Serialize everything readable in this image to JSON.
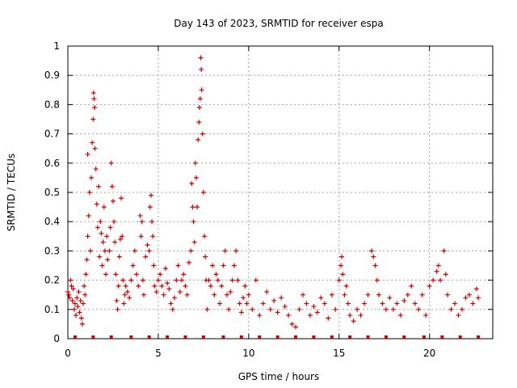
{
  "chart_data": {
    "type": "scatter",
    "title": "Day 143 of 2023, SRMTID for receiver espa",
    "xlabel": "GPS time / hours",
    "ylabel": "SRMTID / TECUs",
    "xlim": [
      0,
      23.5
    ],
    "ylim": [
      0,
      1
    ],
    "x_ticks": [
      0,
      5,
      10,
      15,
      20
    ],
    "y_ticks": [
      0,
      0.1,
      0.2,
      0.3,
      0.4,
      0.5,
      0.6,
      0.7,
      0.8,
      0.9,
      1
    ],
    "y_tick_labels": [
      "0",
      "0.1",
      "0.2",
      "0.3",
      "0.4",
      "0.5",
      "0.6",
      "0.7",
      "0.8",
      "0.9",
      "1"
    ],
    "grid": true,
    "marker": "+",
    "series_color": "#cc0000",
    "series": [
      {
        "name": "SRMTID",
        "points": [
          [
            0.0,
            0.16
          ],
          [
            0.05,
            0.15
          ],
          [
            0.1,
            0.14
          ],
          [
            0.15,
            0.2
          ],
          [
            0.2,
            0.18
          ],
          [
            0.25,
            0.13
          ],
          [
            0.3,
            0.17
          ],
          [
            0.35,
            0.1
          ],
          [
            0.4,
            0.12
          ],
          [
            0.45,
            0.08
          ],
          [
            0.5,
            0.14
          ],
          [
            0.55,
            0.11
          ],
          [
            0.6,
            0.16
          ],
          [
            0.65,
            0.09
          ],
          [
            0.7,
            0.13
          ],
          [
            0.75,
            0.07
          ],
          [
            0.8,
            0.05
          ],
          [
            0.85,
            0.12
          ],
          [
            0.9,
            0.18
          ],
          [
            0.95,
            0.15
          ],
          [
            1.0,
            0.22
          ],
          [
            1.05,
            0.27
          ],
          [
            1.1,
            0.35
          ],
          [
            1.1,
            0.63
          ],
          [
            1.15,
            0.42
          ],
          [
            1.2,
            0.5
          ],
          [
            1.25,
            0.3
          ],
          [
            1.3,
            0.55
          ],
          [
            1.35,
            0.67
          ],
          [
            1.4,
            0.75
          ],
          [
            1.42,
            0.84
          ],
          [
            1.45,
            0.82
          ],
          [
            1.48,
            0.79
          ],
          [
            1.5,
            0.65
          ],
          [
            1.55,
            0.58
          ],
          [
            1.6,
            0.46
          ],
          [
            1.65,
            0.38
          ],
          [
            1.7,
            0.52
          ],
          [
            1.75,
            0.28
          ],
          [
            1.8,
            0.4
          ],
          [
            1.85,
            0.36
          ],
          [
            1.9,
            0.25
          ],
          [
            1.95,
            0.33
          ],
          [
            2.0,
            0.45
          ],
          [
            2.05,
            0.3
          ],
          [
            2.1,
            0.22
          ],
          [
            2.15,
            0.35
          ],
          [
            2.2,
            0.27
          ],
          [
            2.3,
            0.3
          ],
          [
            2.35,
            0.38
          ],
          [
            2.4,
            0.6
          ],
          [
            2.45,
            0.52
          ],
          [
            2.5,
            0.47
          ],
          [
            2.55,
            0.4
          ],
          [
            2.6,
            0.33
          ],
          [
            2.65,
            0.22
          ],
          [
            2.7,
            0.13
          ],
          [
            2.75,
            0.1
          ],
          [
            2.8,
            0.18
          ],
          [
            2.85,
            0.28
          ],
          [
            2.9,
            0.34
          ],
          [
            2.95,
            0.48
          ],
          [
            3.0,
            0.35
          ],
          [
            3.05,
            0.2
          ],
          [
            3.1,
            0.12
          ],
          [
            3.15,
            0.15
          ],
          [
            3.2,
            0.18
          ],
          [
            3.3,
            0.16
          ],
          [
            3.4,
            0.14
          ],
          [
            3.5,
            0.2
          ],
          [
            3.6,
            0.25
          ],
          [
            3.7,
            0.3
          ],
          [
            3.8,
            0.22
          ],
          [
            3.9,
            0.18
          ],
          [
            4.0,
            0.42
          ],
          [
            4.05,
            0.35
          ],
          [
            4.1,
            0.4
          ],
          [
            4.15,
            0.2
          ],
          [
            4.2,
            0.15
          ],
          [
            4.3,
            0.28
          ],
          [
            4.4,
            0.32
          ],
          [
            4.5,
            0.3
          ],
          [
            4.55,
            0.45
          ],
          [
            4.6,
            0.49
          ],
          [
            4.65,
            0.4
          ],
          [
            4.7,
            0.35
          ],
          [
            4.75,
            0.25
          ],
          [
            4.8,
            0.18
          ],
          [
            4.9,
            0.16
          ],
          [
            5.0,
            0.2
          ],
          [
            5.1,
            0.22
          ],
          [
            5.2,
            0.18
          ],
          [
            5.3,
            0.15
          ],
          [
            5.4,
            0.24
          ],
          [
            5.5,
            0.19
          ],
          [
            5.6,
            0.17
          ],
          [
            5.7,
            0.12
          ],
          [
            5.8,
            0.1
          ],
          [
            5.9,
            0.14
          ],
          [
            6.0,
            0.2
          ],
          [
            6.1,
            0.25
          ],
          [
            6.2,
            0.16
          ],
          [
            6.3,
            0.2
          ],
          [
            6.4,
            0.22
          ],
          [
            6.5,
            0.18
          ],
          [
            6.6,
            0.15
          ],
          [
            6.7,
            0.26
          ],
          [
            6.8,
            0.3
          ],
          [
            6.85,
            0.53
          ],
          [
            6.9,
            0.45
          ],
          [
            6.95,
            0.4
          ],
          [
            7.0,
            0.33
          ],
          [
            7.05,
            0.6
          ],
          [
            7.1,
            0.55
          ],
          [
            7.15,
            0.45
          ],
          [
            7.2,
            0.68
          ],
          [
            7.25,
            0.74
          ],
          [
            7.28,
            0.79
          ],
          [
            7.32,
            0.82
          ],
          [
            7.35,
            0.96
          ],
          [
            7.38,
            0.92
          ],
          [
            7.4,
            0.85
          ],
          [
            7.45,
            0.7
          ],
          [
            7.5,
            0.5
          ],
          [
            7.55,
            0.35
          ],
          [
            7.6,
            0.28
          ],
          [
            7.65,
            0.2
          ],
          [
            7.7,
            0.1
          ],
          [
            7.8,
            0.2
          ],
          [
            7.9,
            0.18
          ],
          [
            8.0,
            0.25
          ],
          [
            8.1,
            0.15
          ],
          [
            8.2,
            0.22
          ],
          [
            8.3,
            0.2
          ],
          [
            8.4,
            0.12
          ],
          [
            8.5,
            0.18
          ],
          [
            8.6,
            0.25
          ],
          [
            8.7,
            0.3
          ],
          [
            8.8,
            0.15
          ],
          [
            8.9,
            0.1
          ],
          [
            9.0,
            0.16
          ],
          [
            9.1,
            0.2
          ],
          [
            9.2,
            0.25
          ],
          [
            9.3,
            0.3
          ],
          [
            9.4,
            0.2
          ],
          [
            9.5,
            0.12
          ],
          [
            9.6,
            0.09
          ],
          [
            9.7,
            0.14
          ],
          [
            9.8,
            0.18
          ],
          [
            9.9,
            0.12
          ],
          [
            10.0,
            0.15
          ],
          [
            10.2,
            0.1
          ],
          [
            10.4,
            0.2
          ],
          [
            10.6,
            0.08
          ],
          [
            10.8,
            0.12
          ],
          [
            11.0,
            0.16
          ],
          [
            11.2,
            0.1
          ],
          [
            11.4,
            0.13
          ],
          [
            11.6,
            0.09
          ],
          [
            11.8,
            0.14
          ],
          [
            12.0,
            0.11
          ],
          [
            12.2,
            0.08
          ],
          [
            12.4,
            0.05
          ],
          [
            12.6,
            0.04
          ],
          [
            12.8,
            0.1
          ],
          [
            13.0,
            0.15
          ],
          [
            13.2,
            0.12
          ],
          [
            13.4,
            0.08
          ],
          [
            13.6,
            0.11
          ],
          [
            13.8,
            0.09
          ],
          [
            14.0,
            0.14
          ],
          [
            14.2,
            0.12
          ],
          [
            14.4,
            0.07
          ],
          [
            14.6,
            0.15
          ],
          [
            14.8,
            0.1
          ],
          [
            15.0,
            0.2
          ],
          [
            15.1,
            0.25
          ],
          [
            15.15,
            0.28
          ],
          [
            15.2,
            0.22
          ],
          [
            15.3,
            0.15
          ],
          [
            15.4,
            0.18
          ],
          [
            15.5,
            0.12
          ],
          [
            15.6,
            0.08
          ],
          [
            15.8,
            0.06
          ],
          [
            16.0,
            0.1
          ],
          [
            16.2,
            0.08
          ],
          [
            16.4,
            0.12
          ],
          [
            16.6,
            0.15
          ],
          [
            16.8,
            0.3
          ],
          [
            16.9,
            0.28
          ],
          [
            17.0,
            0.25
          ],
          [
            17.1,
            0.2
          ],
          [
            17.2,
            0.15
          ],
          [
            17.4,
            0.12
          ],
          [
            17.6,
            0.1
          ],
          [
            17.8,
            0.14
          ],
          [
            18.0,
            0.1
          ],
          [
            18.2,
            0.12
          ],
          [
            18.4,
            0.08
          ],
          [
            18.6,
            0.13
          ],
          [
            18.8,
            0.15
          ],
          [
            19.0,
            0.18
          ],
          [
            19.2,
            0.12
          ],
          [
            19.4,
            0.1
          ],
          [
            19.6,
            0.15
          ],
          [
            19.8,
            0.08
          ],
          [
            20.0,
            0.18
          ],
          [
            20.2,
            0.2
          ],
          [
            20.4,
            0.23
          ],
          [
            20.5,
            0.25
          ],
          [
            20.6,
            0.2
          ],
          [
            20.8,
            0.3
          ],
          [
            20.9,
            0.22
          ],
          [
            21.0,
            0.15
          ],
          [
            21.2,
            0.1
          ],
          [
            21.4,
            0.12
          ],
          [
            21.6,
            0.08
          ],
          [
            21.8,
            0.1
          ],
          [
            22.0,
            0.14
          ],
          [
            22.2,
            0.15
          ],
          [
            22.4,
            0.12
          ],
          [
            22.6,
            0.17
          ],
          [
            22.7,
            0.14
          ]
        ]
      }
    ],
    "missing_markers_x": [
      0.4,
      1.4,
      2.4,
      3.5,
      4.5,
      5.5,
      6.5,
      7.5,
      8.6,
      9.6,
      10.6,
      11.6,
      12.6,
      13.6,
      14.6,
      15.6,
      16.6,
      17.6,
      18.6,
      19.7,
      20.7,
      21.7,
      22.7
    ]
  }
}
